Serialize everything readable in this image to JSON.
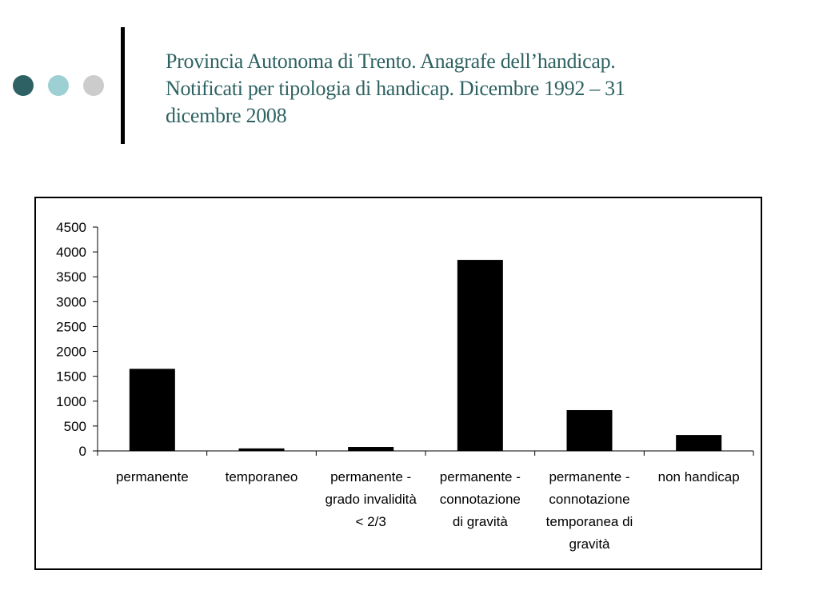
{
  "slide": {
    "title_lines": [
      "Provincia Autonoma di Trento. Anagrafe dell’handicap.",
      "Notificati per tipologia di handicap. Dicembre 1992 – 31",
      "dicembre 2008"
    ],
    "title_color": "#2f6262",
    "bullet_colors": [
      "#2e6163",
      "#9dd0d2",
      "#cccccc"
    ]
  },
  "chart_data": {
    "type": "bar",
    "title": "",
    "xlabel": "",
    "ylabel": "",
    "ylim": [
      0,
      4500
    ],
    "ytick_labels": [
      "0",
      "500",
      "1000",
      "1500",
      "2000",
      "2500",
      "3000",
      "3500",
      "4000",
      "4500"
    ],
    "grid": false,
    "legend": "none",
    "bar_color": "#000000",
    "categories": [
      [
        "permanente"
      ],
      [
        "temporaneo"
      ],
      [
        "permanente -",
        "grado invalidità",
        "< 2/3"
      ],
      [
        "permanente -",
        "connotazione",
        "di gravità"
      ],
      [
        "permanente -",
        "connotazione",
        "temporanea di",
        "gravità"
      ],
      [
        "non handicap"
      ]
    ],
    "values": [
      1650,
      50,
      80,
      3840,
      820,
      320
    ]
  }
}
